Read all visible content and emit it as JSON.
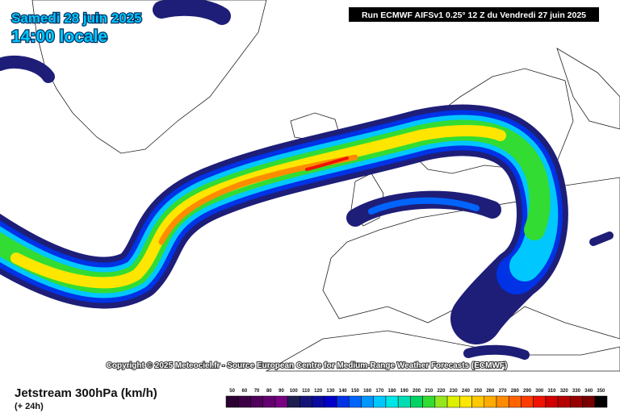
{
  "header": {
    "date": "Samedi 28 juin 2025",
    "time": "14:00 locale",
    "run": "Run ECMWF AIFSv1 0.25° 12 Z du Vendredi 27 juin 2025"
  },
  "copyright": "Copyright © 2025 Meteociel.fr - Source European Centre for Medium-Range Weather Forecasts (ECMWF)",
  "footer": {
    "title": "Jetstream 300hPa (km/h)",
    "subtitle": "(+ 24h)"
  },
  "legend": {
    "labels": [
      50,
      60,
      70,
      80,
      90,
      100,
      110,
      120,
      130,
      140,
      150,
      160,
      170,
      180,
      190,
      200,
      210,
      220,
      230,
      240,
      250,
      260,
      270,
      280,
      290,
      300,
      310,
      320,
      330,
      340,
      350
    ],
    "colors": [
      "#2a0030",
      "#3c0046",
      "#50005a",
      "#640070",
      "#780082",
      "#1e1e50",
      "#141478",
      "#0a0aa0",
      "#0000c8",
      "#0032e6",
      "#0064ff",
      "#0096ff",
      "#00c8ff",
      "#00e6e6",
      "#00dcb4",
      "#00d264",
      "#32dc32",
      "#96e61e",
      "#dcf000",
      "#ffe600",
      "#ffc800",
      "#ffaa00",
      "#ff8c00",
      "#ff6400",
      "#ff3c00",
      "#f01400",
      "#d20000",
      "#b40000",
      "#960000",
      "#780000",
      "#000000"
    ]
  }
}
